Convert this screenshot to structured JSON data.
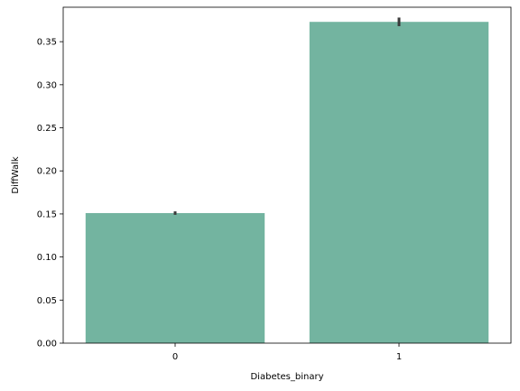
{
  "chart_data": {
    "type": "bar",
    "categories": [
      "0",
      "1"
    ],
    "values": [
      0.151,
      0.373
    ],
    "error": [
      [
        0.149,
        0.153
      ],
      [
        0.368,
        0.378
      ]
    ],
    "title": "",
    "xlabel": "Diabetes_binary",
    "ylabel": "DiffWalk",
    "ylim": [
      0,
      0.39
    ],
    "yticks": [
      0.0,
      0.05,
      0.1,
      0.15,
      0.2,
      0.25,
      0.3,
      0.35
    ],
    "ytick_labels": [
      "0.00",
      "0.05",
      "0.10",
      "0.15",
      "0.20",
      "0.25",
      "0.30",
      "0.35"
    ],
    "grid": false,
    "colors": {
      "bar": "#73b4a0",
      "errorbar": "#3a3a3a",
      "axis": "#000000"
    }
  }
}
